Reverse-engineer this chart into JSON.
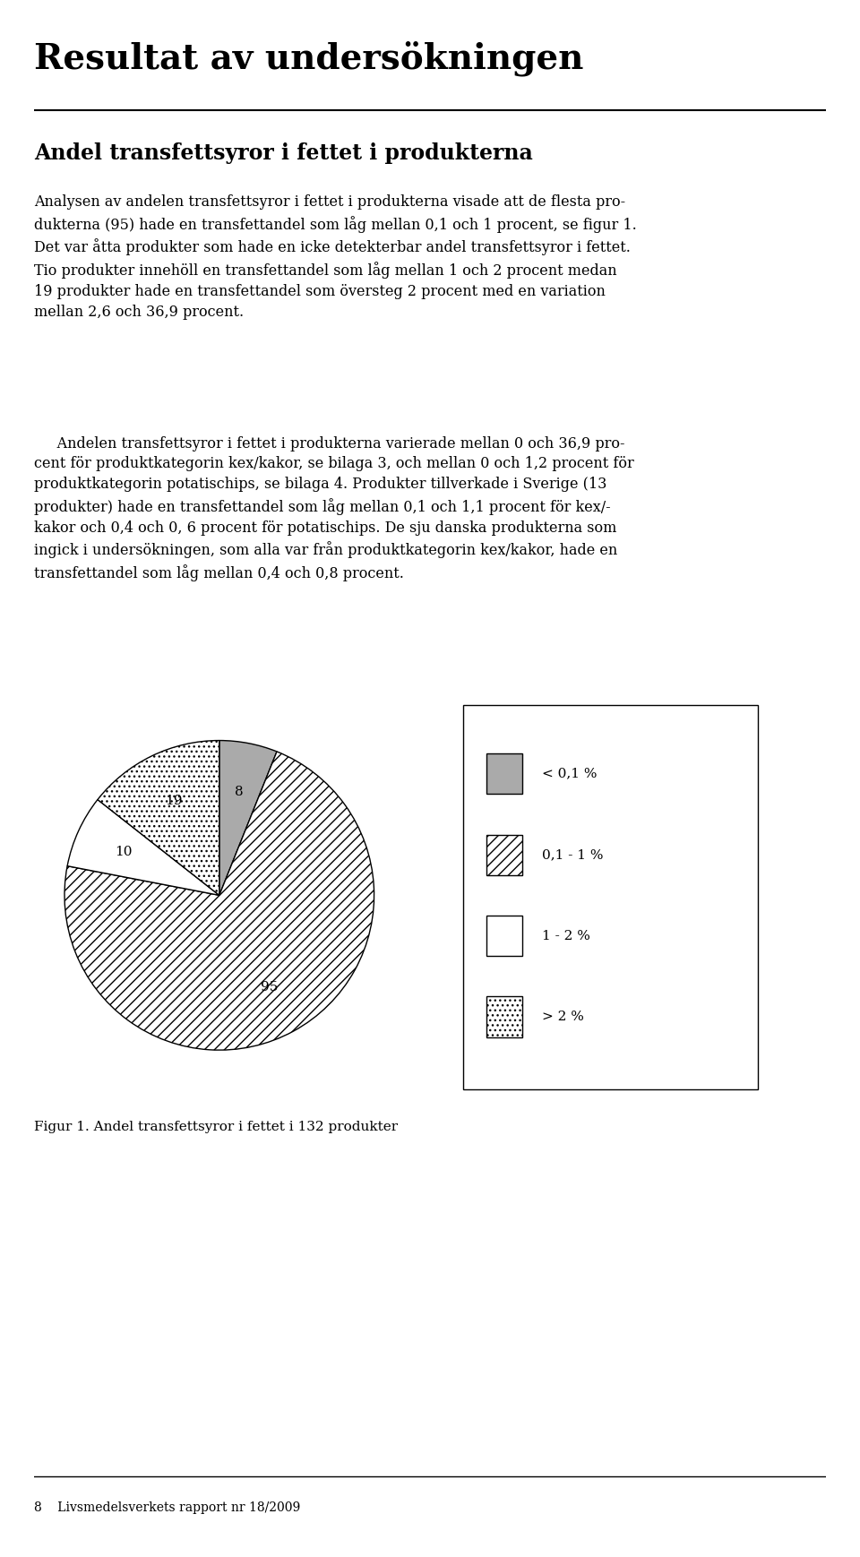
{
  "title": "Resultat av undersökningen",
  "subtitle": "Andel transfettsyror i fettet i produkterna",
  "para1": "Analysen av andelen transfettsyror i fettet i produkterna visade att de flesta pro-\ndukterna (95) hade en transfettandel som låg mellan 0,1 och 1 procent, se figur 1.\nDet var åtta produkter som hade en icke detekterbar andel transfettsyror i fettet.\nTio produkter innehöll en transfettandel som låg mellan 1 och 2 procent medan\n19 produkter hade en transfettandel som översteg 2 procent med en variation\nmellan 2,6 och 36,9 procent.",
  "para2": "     Andelen transfettsyror i fettet i produkterna varierade mellan 0 och 36,9 pro-\ncent för produktkategorin kex/kakor, se bilaga 3, och mellan 0 och 1,2 procent för\nproduktkategorin potatischips, se bilaga 4. Produkter tillverkade i Sverige (13\nprodukter) hade en transfettandel som låg mellan 0,1 och 1,1 procent för kex/-\nkakor och 0,4 och 0, 6 procent för potatischips. De sju danska produkterna som\ningick i undersökningen, som alla var från produktkategorin kex/kakor, hade en\ntransfettandel som låg mellan 0,4 och 0,8 procent.",
  "pie_values": [
    8,
    95,
    10,
    19
  ],
  "pie_labels": [
    "8",
    "95",
    "10",
    "19"
  ],
  "legend_labels": [
    "< 0,1 %",
    "0,1 - 1 %",
    "1 - 2 %",
    "> 2 %"
  ],
  "figure_caption": "Figur 1. Andel transfettsyror i fettet i 132 produkter",
  "footer_text": "8    Livsmedelsverkets rapport nr 18/2009"
}
